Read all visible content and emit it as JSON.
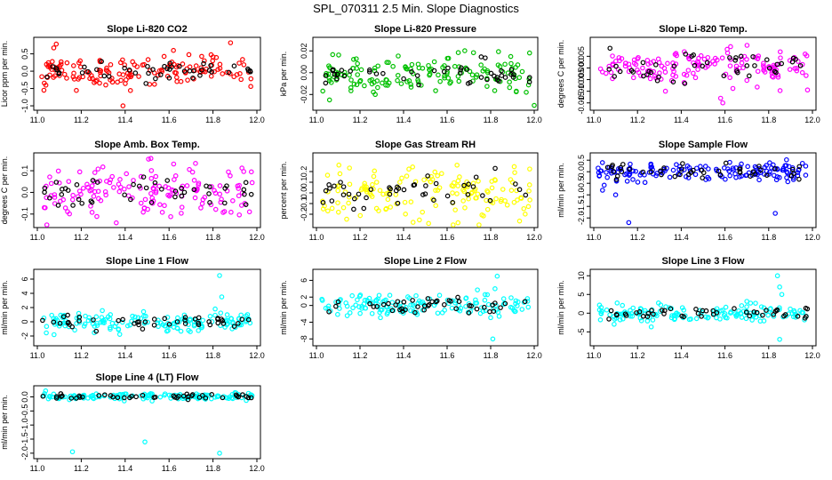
{
  "figure_title": "SPL_070311  2.5 Min. Slope Diagnostics",
  "chart_data": [
    {
      "type": "scatter",
      "title": "Slope Li-820 CO2",
      "ylabel": "Licor ppm per min.",
      "color": "#ff0000",
      "xlim": [
        11.0,
        12.0
      ],
      "ylim": [
        -1.05,
        0.9
      ],
      "yticks": [
        "-1.0",
        "-0.5",
        "0.0",
        "0.5"
      ],
      "xticks": [
        "11.0",
        "11.2",
        "11.4",
        "11.6",
        "11.8",
        "12.0"
      ],
      "center": 0,
      "spread": 0.22,
      "n": 150,
      "seed": 11,
      "outliers": [
        [
          11.39,
          -1.0
        ],
        [
          11.88,
          0.82
        ],
        [
          11.03,
          -0.55
        ],
        [
          11.62,
          0.6
        ]
      ]
    },
    {
      "type": "scatter",
      "title": "Slope Li-820 Pressure",
      "ylabel": "kPa per min.",
      "color": "#00c000",
      "xlim": [
        11.0,
        12.0
      ],
      "ylim": [
        -0.032,
        0.03
      ],
      "yticks": [
        "-0.02",
        "0.00",
        "0.02"
      ],
      "xticks": [
        "11.0",
        "11.2",
        "11.4",
        "11.6",
        "11.8",
        "12.0"
      ],
      "center": 0,
      "spread": 0.008,
      "n": 150,
      "seed": 23,
      "outliers": [
        [
          12.0,
          -0.03
        ],
        [
          11.06,
          -0.025
        ],
        [
          11.27,
          -0.02
        ]
      ]
    },
    {
      "type": "scatter",
      "title": "Slope Li-820 Temp.",
      "ylabel": "degrees C per min.",
      "color": "#ff00ff",
      "xlim": [
        11.0,
        12.0
      ],
      "ylim": [
        -0.017,
        0.012
      ],
      "yticks": [
        "-0.015",
        "-0.010",
        "-0.005",
        "0.000",
        "0.005"
      ],
      "xticks": [
        "11.0",
        "11.2",
        "11.4",
        "11.6",
        "11.8",
        "12.0"
      ],
      "center": 0,
      "spread": 0.004,
      "n": 150,
      "seed": 37,
      "outliers": [
        [
          11.59,
          -0.015
        ],
        [
          11.58,
          -0.013
        ],
        [
          11.61,
          0.008
        ]
      ]
    },
    {
      "type": "scatter",
      "title": "Slope Amb. Box Temp.",
      "ylabel": "degrees C per min.",
      "color": "#ff00ff",
      "xlim": [
        11.0,
        12.0
      ],
      "ylim": [
        -0.15,
        0.17
      ],
      "yticks": [
        "-0.1",
        "0.0",
        "0.1"
      ],
      "xticks": [
        "11.0",
        "11.2",
        "11.4",
        "11.6",
        "11.8",
        "12.0"
      ],
      "center": 0,
      "spread": 0.06,
      "n": 150,
      "seed": 41,
      "outliers": []
    },
    {
      "type": "scatter",
      "title": "Slope Gas Stream RH",
      "ylabel": "percent per min.",
      "color": "#ffff00",
      "xlim": [
        11.0,
        12.0
      ],
      "ylim": [
        -0.3,
        0.35
      ],
      "yticks": [
        "-0.2",
        "-0.1",
        "0.0",
        "0.1",
        "0.2"
      ],
      "xticks": [
        "11.0",
        "11.2",
        "11.4",
        "11.6",
        "11.8",
        "12.0"
      ],
      "center": 0,
      "spread": 0.12,
      "n": 150,
      "seed": 53,
      "outliers": [
        [
          11.65,
          -0.28
        ]
      ]
    },
    {
      "type": "scatter",
      "title": "Slope Sample Flow",
      "ylabel": "ml/min per min.",
      "color": "#0000ff",
      "xlim": [
        11.0,
        12.0
      ],
      "ylim": [
        -2.3,
        0.7
      ],
      "yticks": [
        "-2.0",
        "-1.5",
        "-1.0",
        "-0.5",
        "0.0",
        "0.5"
      ],
      "xticks": [
        "11.0",
        "11.2",
        "11.4",
        "11.6",
        "11.8",
        "12.0"
      ],
      "center": 0,
      "spread": 0.2,
      "n": 150,
      "seed": 67,
      "outliers": [
        [
          11.16,
          -2.2
        ],
        [
          11.83,
          -1.8
        ],
        [
          11.1,
          -1.0
        ],
        [
          11.04,
          -0.8
        ]
      ]
    },
    {
      "type": "scatter",
      "title": "Slope Line 1 Flow",
      "ylabel": "ml/min per min.",
      "color": "#00ffff",
      "xlim": [
        11.0,
        12.0
      ],
      "ylim": [
        -3,
        7
      ],
      "yticks": [
        "-2",
        "0",
        "2",
        "4",
        "6"
      ],
      "xticks": [
        "11.0",
        "11.2",
        "11.4",
        "11.6",
        "11.8",
        "12.0"
      ],
      "center": 0,
      "spread": 0.7,
      "n": 150,
      "seed": 71,
      "outliers": [
        [
          11.83,
          6.5
        ],
        [
          11.84,
          3.5
        ],
        [
          11.81,
          1.8
        ]
      ]
    },
    {
      "type": "scatter",
      "title": "Slope Line 2 Flow",
      "ylabel": "ml/min per min.",
      "color": "#00ffff",
      "xlim": [
        11.0,
        12.0
      ],
      "ylim": [
        -9,
        8
      ],
      "yticks": [
        "-8",
        "-4",
        "0",
        "2",
        "6"
      ],
      "xticks": [
        "11.0",
        "11.2",
        "11.4",
        "11.6",
        "11.8",
        "12.0"
      ],
      "center": 0,
      "spread": 1.2,
      "n": 150,
      "seed": 79,
      "outliers": [
        [
          11.81,
          -8
        ],
        [
          11.83,
          7
        ],
        [
          11.82,
          4
        ]
      ]
    },
    {
      "type": "scatter",
      "title": "Slope Line 3 Flow",
      "ylabel": "ml/min per min.",
      "color": "#00ffff",
      "xlim": [
        11.0,
        12.0
      ],
      "ylim": [
        -8,
        11
      ],
      "yticks": [
        "-5",
        "0",
        "5",
        "10"
      ],
      "xticks": [
        "11.0",
        "11.2",
        "11.4",
        "11.6",
        "11.8",
        "12.0"
      ],
      "center": 0,
      "spread": 1.1,
      "n": 150,
      "seed": 83,
      "outliers": [
        [
          11.85,
          -7
        ],
        [
          11.84,
          10
        ],
        [
          11.85,
          7
        ],
        [
          11.86,
          5
        ]
      ]
    },
    {
      "type": "scatter",
      "title": "Slope Line 4 (LT) Flow",
      "ylabel": "ml/min per min.",
      "color": "#00ffff",
      "xlim": [
        11.0,
        12.0
      ],
      "ylim": [
        -2.1,
        0.3
      ],
      "yticks": [
        "-2.0",
        "-1.5",
        "-1.0",
        "-0.5",
        "0.0"
      ],
      "xticks": [
        "11.0",
        "11.2",
        "11.4",
        "11.6",
        "11.8",
        "12.0"
      ],
      "center": 0,
      "spread": 0.07,
      "n": 150,
      "seed": 97,
      "outliers": [
        [
          11.16,
          -1.95
        ],
        [
          11.49,
          -1.6
        ],
        [
          11.83,
          -2.0
        ]
      ]
    }
  ]
}
